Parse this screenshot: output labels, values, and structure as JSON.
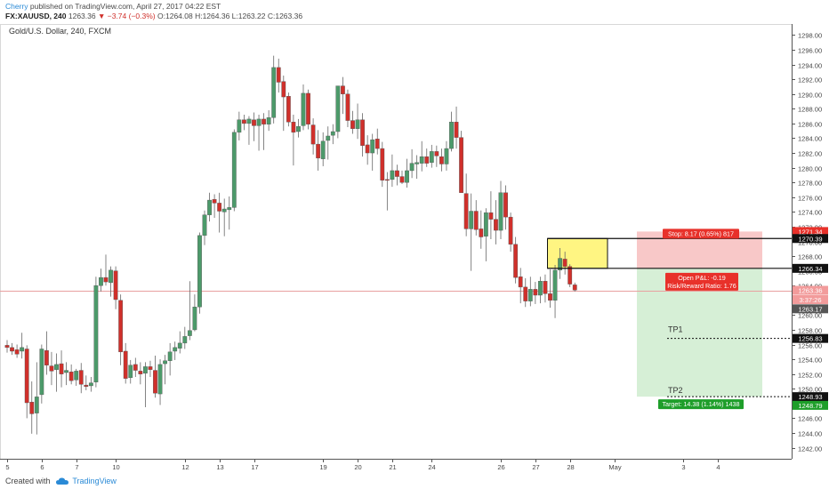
{
  "header": {
    "author": "Cherry",
    "published": " published on TradingView.com, April 27, 2017 04:22 EST",
    "symbol": "FX:XAUUSD, 240",
    "last": "1263.36",
    "change": "▼ −3.74 (−0.3%)",
    "ohlc": "O:1264.08 H:1264.36 L:1263.22 C:1263.36"
  },
  "footer": {
    "created_with": "Created with",
    "brand": "TradingView"
  },
  "colors": {
    "up": "#4c9a6a",
    "down": "#d0302b",
    "stop_zone": "#f8c8c8",
    "target_zone": "#d6efd6",
    "entry_box": "#fff36c",
    "last_price_line": "#e8a0a0"
  },
  "chart_data": {
    "type": "candlestick",
    "title": "Gold/U.S. Dollar, 240, FXCM",
    "ylim": [
      1240.5,
      1299.5
    ],
    "yticks": [
      1242,
      1244,
      1246,
      1248,
      1250,
      1252,
      1254,
      1256,
      1258,
      1260,
      1262,
      1264,
      1266,
      1268,
      1270,
      1272,
      1274,
      1276,
      1278,
      1280,
      1282,
      1284,
      1286,
      1288,
      1290,
      1292,
      1294,
      1296,
      1298
    ],
    "xticks": [
      "5",
      "6",
      "7",
      "10",
      "12",
      "13",
      "17",
      "19",
      "20",
      "21",
      "24",
      "26",
      "27",
      "28",
      "May",
      "3",
      "4"
    ],
    "candles": [
      {
        "o": 1255.9,
        "h": 1256.6,
        "l": 1254.9,
        "c": 1255.6
      },
      {
        "o": 1255.6,
        "h": 1256.2,
        "l": 1254.6,
        "c": 1255.1
      },
      {
        "o": 1255.3,
        "h": 1256.0,
        "l": 1254.2,
        "c": 1254.7
      },
      {
        "o": 1255.1,
        "h": 1257.6,
        "l": 1254.1,
        "c": 1255.6
      },
      {
        "o": 1255.4,
        "h": 1255.9,
        "l": 1246.0,
        "c": 1248.1
      },
      {
        "o": 1248.2,
        "h": 1251.0,
        "l": 1243.9,
        "c": 1246.6
      },
      {
        "o": 1246.7,
        "h": 1253.6,
        "l": 1243.8,
        "c": 1248.9
      },
      {
        "o": 1249.2,
        "h": 1256.0,
        "l": 1248.0,
        "c": 1255.4
      },
      {
        "o": 1255.2,
        "h": 1257.8,
        "l": 1251.9,
        "c": 1253.2
      },
      {
        "o": 1253.1,
        "h": 1255.0,
        "l": 1250.5,
        "c": 1252.4
      },
      {
        "o": 1252.6,
        "h": 1254.8,
        "l": 1249.6,
        "c": 1253.3
      },
      {
        "o": 1253.4,
        "h": 1255.2,
        "l": 1250.2,
        "c": 1252.0
      },
      {
        "o": 1252.2,
        "h": 1253.6,
        "l": 1250.5,
        "c": 1252.5
      },
      {
        "o": 1252.3,
        "h": 1253.3,
        "l": 1250.6,
        "c": 1251.1
      },
      {
        "o": 1251.2,
        "h": 1252.7,
        "l": 1250.4,
        "c": 1252.4
      },
      {
        "o": 1252.5,
        "h": 1253.5,
        "l": 1249.4,
        "c": 1250.6
      },
      {
        "o": 1250.5,
        "h": 1251.8,
        "l": 1249.8,
        "c": 1250.3
      },
      {
        "o": 1250.4,
        "h": 1251.6,
        "l": 1249.6,
        "c": 1250.8
      },
      {
        "o": 1250.9,
        "h": 1265.2,
        "l": 1250.2,
        "c": 1264.0
      },
      {
        "o": 1264.0,
        "h": 1266.3,
        "l": 1263.2,
        "c": 1265.1
      },
      {
        "o": 1265.1,
        "h": 1268.2,
        "l": 1264.0,
        "c": 1264.5
      },
      {
        "o": 1264.4,
        "h": 1266.6,
        "l": 1262.5,
        "c": 1266.1
      },
      {
        "o": 1266.0,
        "h": 1266.6,
        "l": 1260.8,
        "c": 1262.1
      },
      {
        "o": 1262.0,
        "h": 1262.8,
        "l": 1253.2,
        "c": 1255.0
      },
      {
        "o": 1255.1,
        "h": 1256.2,
        "l": 1250.7,
        "c": 1251.4
      },
      {
        "o": 1251.5,
        "h": 1253.9,
        "l": 1250.7,
        "c": 1253.2
      },
      {
        "o": 1253.3,
        "h": 1254.2,
        "l": 1251.6,
        "c": 1252.5
      },
      {
        "o": 1252.4,
        "h": 1253.6,
        "l": 1250.6,
        "c": 1252.0
      },
      {
        "o": 1252.1,
        "h": 1253.6,
        "l": 1247.5,
        "c": 1253.0
      },
      {
        "o": 1253.0,
        "h": 1253.8,
        "l": 1251.6,
        "c": 1252.6
      },
      {
        "o": 1252.5,
        "h": 1254.5,
        "l": 1248.8,
        "c": 1249.4
      },
      {
        "o": 1249.3,
        "h": 1254.0,
        "l": 1247.8,
        "c": 1253.3
      },
      {
        "o": 1253.4,
        "h": 1254.6,
        "l": 1250.6,
        "c": 1253.8
      },
      {
        "o": 1253.8,
        "h": 1256.2,
        "l": 1251.8,
        "c": 1255.0
      },
      {
        "o": 1255.1,
        "h": 1256.4,
        "l": 1253.9,
        "c": 1255.6
      },
      {
        "o": 1255.5,
        "h": 1257.8,
        "l": 1254.8,
        "c": 1256.2
      },
      {
        "o": 1256.2,
        "h": 1258.4,
        "l": 1255.4,
        "c": 1257.1
      },
      {
        "o": 1257.2,
        "h": 1264.6,
        "l": 1256.6,
        "c": 1257.9
      },
      {
        "o": 1258.0,
        "h": 1262.8,
        "l": 1257.8,
        "c": 1261.1
      },
      {
        "o": 1261.1,
        "h": 1271.2,
        "l": 1260.2,
        "c": 1270.8
      },
      {
        "o": 1270.8,
        "h": 1274.2,
        "l": 1269.5,
        "c": 1273.6
      },
      {
        "o": 1273.6,
        "h": 1276.6,
        "l": 1272.7,
        "c": 1275.6
      },
      {
        "o": 1275.7,
        "h": 1276.4,
        "l": 1273.2,
        "c": 1275.2
      },
      {
        "o": 1275.2,
        "h": 1276.6,
        "l": 1271.2,
        "c": 1274.1
      },
      {
        "o": 1274.0,
        "h": 1275.8,
        "l": 1270.7,
        "c": 1274.4
      },
      {
        "o": 1274.3,
        "h": 1276.1,
        "l": 1271.6,
        "c": 1274.6
      },
      {
        "o": 1274.6,
        "h": 1285.2,
        "l": 1274.1,
        "c": 1284.8
      },
      {
        "o": 1284.8,
        "h": 1287.6,
        "l": 1283.7,
        "c": 1286.5
      },
      {
        "o": 1286.5,
        "h": 1287.2,
        "l": 1285.1,
        "c": 1286.0
      },
      {
        "o": 1286.0,
        "h": 1287.0,
        "l": 1283.1,
        "c": 1286.6
      },
      {
        "o": 1286.5,
        "h": 1287.5,
        "l": 1283.6,
        "c": 1285.7
      },
      {
        "o": 1285.7,
        "h": 1287.2,
        "l": 1282.3,
        "c": 1286.6
      },
      {
        "o": 1286.6,
        "h": 1287.4,
        "l": 1282.4,
        "c": 1285.9
      },
      {
        "o": 1285.9,
        "h": 1287.8,
        "l": 1285.0,
        "c": 1286.8
      },
      {
        "o": 1286.8,
        "h": 1295.2,
        "l": 1286.0,
        "c": 1293.6
      },
      {
        "o": 1293.6,
        "h": 1294.8,
        "l": 1290.2,
        "c": 1291.6
      },
      {
        "o": 1291.7,
        "h": 1292.5,
        "l": 1285.0,
        "c": 1289.6
      },
      {
        "o": 1289.7,
        "h": 1290.2,
        "l": 1285.6,
        "c": 1286.2
      },
      {
        "o": 1286.2,
        "h": 1287.2,
        "l": 1280.3,
        "c": 1284.8
      },
      {
        "o": 1284.9,
        "h": 1286.6,
        "l": 1284.1,
        "c": 1285.6
      },
      {
        "o": 1285.7,
        "h": 1291.3,
        "l": 1285.1,
        "c": 1290.1
      },
      {
        "o": 1290.1,
        "h": 1290.6,
        "l": 1285.2,
        "c": 1285.9
      },
      {
        "o": 1285.8,
        "h": 1286.7,
        "l": 1281.8,
        "c": 1283.2
      },
      {
        "o": 1283.2,
        "h": 1285.1,
        "l": 1279.6,
        "c": 1281.3
      },
      {
        "o": 1281.2,
        "h": 1284.8,
        "l": 1280.2,
        "c": 1283.6
      },
      {
        "o": 1283.7,
        "h": 1285.6,
        "l": 1281.1,
        "c": 1284.3
      },
      {
        "o": 1284.4,
        "h": 1285.9,
        "l": 1283.2,
        "c": 1284.9
      },
      {
        "o": 1284.9,
        "h": 1290.7,
        "l": 1284.0,
        "c": 1291.1
      },
      {
        "o": 1291.1,
        "h": 1292.3,
        "l": 1287.3,
        "c": 1290.0
      },
      {
        "o": 1290.0,
        "h": 1290.6,
        "l": 1285.5,
        "c": 1286.4
      },
      {
        "o": 1286.4,
        "h": 1287.7,
        "l": 1284.6,
        "c": 1285.3
      },
      {
        "o": 1285.3,
        "h": 1288.7,
        "l": 1283.9,
        "c": 1286.5
      },
      {
        "o": 1286.5,
        "h": 1287.4,
        "l": 1281.5,
        "c": 1283.0
      },
      {
        "o": 1283.1,
        "h": 1284.4,
        "l": 1280.4,
        "c": 1282.0
      },
      {
        "o": 1282.0,
        "h": 1284.6,
        "l": 1279.6,
        "c": 1283.8
      },
      {
        "o": 1283.9,
        "h": 1285.3,
        "l": 1281.8,
        "c": 1282.6
      },
      {
        "o": 1282.6,
        "h": 1283.5,
        "l": 1277.4,
        "c": 1278.3
      },
      {
        "o": 1278.4,
        "h": 1279.4,
        "l": 1274.2,
        "c": 1278.3
      },
      {
        "o": 1278.4,
        "h": 1281.8,
        "l": 1277.4,
        "c": 1279.6
      },
      {
        "o": 1279.6,
        "h": 1280.4,
        "l": 1277.6,
        "c": 1278.8
      },
      {
        "o": 1278.8,
        "h": 1279.6,
        "l": 1277.8,
        "c": 1278.0
      },
      {
        "o": 1278.0,
        "h": 1281.2,
        "l": 1277.3,
        "c": 1279.6
      },
      {
        "o": 1279.6,
        "h": 1282.5,
        "l": 1278.6,
        "c": 1280.6
      },
      {
        "o": 1280.5,
        "h": 1281.7,
        "l": 1278.5,
        "c": 1280.7
      },
      {
        "o": 1280.6,
        "h": 1283.6,
        "l": 1279.5,
        "c": 1281.5
      },
      {
        "o": 1281.5,
        "h": 1282.6,
        "l": 1280.1,
        "c": 1280.6
      },
      {
        "o": 1280.7,
        "h": 1283.1,
        "l": 1280.0,
        "c": 1282.2
      },
      {
        "o": 1282.2,
        "h": 1283.0,
        "l": 1280.1,
        "c": 1281.6
      },
      {
        "o": 1281.5,
        "h": 1282.6,
        "l": 1279.5,
        "c": 1280.5
      },
      {
        "o": 1280.5,
        "h": 1283.6,
        "l": 1279.6,
        "c": 1282.6
      },
      {
        "o": 1282.6,
        "h": 1287.6,
        "l": 1282.2,
        "c": 1286.2
      },
      {
        "o": 1286.2,
        "h": 1288.3,
        "l": 1282.6,
        "c": 1284.1
      },
      {
        "o": 1284.1,
        "h": 1285.0,
        "l": 1277.1,
        "c": 1276.6
      },
      {
        "o": 1276.5,
        "h": 1279.2,
        "l": 1270.7,
        "c": 1271.7
      },
      {
        "o": 1271.7,
        "h": 1276.5,
        "l": 1266.0,
        "c": 1274.1
      },
      {
        "o": 1274.1,
        "h": 1275.6,
        "l": 1270.8,
        "c": 1271.6
      },
      {
        "o": 1271.7,
        "h": 1274.2,
        "l": 1269.0,
        "c": 1270.6
      },
      {
        "o": 1270.7,
        "h": 1274.5,
        "l": 1267.3,
        "c": 1273.9
      },
      {
        "o": 1273.9,
        "h": 1276.8,
        "l": 1270.3,
        "c": 1273.0
      },
      {
        "o": 1273.0,
        "h": 1275.6,
        "l": 1269.6,
        "c": 1271.5
      },
      {
        "o": 1271.5,
        "h": 1278.2,
        "l": 1270.3,
        "c": 1276.6
      },
      {
        "o": 1276.6,
        "h": 1277.6,
        "l": 1271.6,
        "c": 1273.3
      },
      {
        "o": 1273.3,
        "h": 1273.9,
        "l": 1268.6,
        "c": 1269.6
      },
      {
        "o": 1269.6,
        "h": 1270.6,
        "l": 1264.3,
        "c": 1265.1
      },
      {
        "o": 1265.2,
        "h": 1266.4,
        "l": 1261.6,
        "c": 1263.8
      },
      {
        "o": 1263.8,
        "h": 1265.0,
        "l": 1261.1,
        "c": 1261.9
      },
      {
        "o": 1261.9,
        "h": 1265.2,
        "l": 1261.2,
        "c": 1263.5
      },
      {
        "o": 1263.5,
        "h": 1264.5,
        "l": 1261.5,
        "c": 1262.7
      },
      {
        "o": 1262.7,
        "h": 1265.2,
        "l": 1261.6,
        "c": 1264.6
      },
      {
        "o": 1264.6,
        "h": 1265.5,
        "l": 1261.7,
        "c": 1262.9
      },
      {
        "o": 1262.9,
        "h": 1266.2,
        "l": 1261.0,
        "c": 1262.0
      },
      {
        "o": 1262.0,
        "h": 1266.8,
        "l": 1259.6,
        "c": 1266.1
      },
      {
        "o": 1266.1,
        "h": 1269.1,
        "l": 1264.9,
        "c": 1267.7
      },
      {
        "o": 1267.6,
        "h": 1268.6,
        "l": 1265.5,
        "c": 1266.6
      },
      {
        "o": 1266.6,
        "h": 1266.9,
        "l": 1263.8,
        "c": 1264.2
      },
      {
        "o": 1264.1,
        "h": 1264.4,
        "l": 1263.2,
        "c": 1263.4
      }
    ],
    "position": {
      "entry": 1266.34,
      "stop": 1271.34,
      "target": 1248.93,
      "stop_label": "Stop: 8.17 (0.65%) 817",
      "target_label": "Target: 14.38 (1.14%) 1438",
      "pnl_label": "Open P&L: -0.19",
      "rr_label": "Risk/Reward Ratio: 1.76",
      "tp1": 1256.83,
      "tp2": 1248.93,
      "tp1_label": "TP1",
      "tp2_label": "TP2",
      "entry_box_top": 1270.39
    },
    "price_tags": [
      {
        "text": "1271.34",
        "price": 1271.34,
        "bg": "#e8312a",
        "fg": "#ffffff"
      },
      {
        "text": "1270.39",
        "price": 1270.39,
        "bg": "#111111",
        "fg": "#ffffff"
      },
      {
        "text": "1266.34",
        "price": 1266.34,
        "bg": "#111111",
        "fg": "#ffffff"
      },
      {
        "text": "1263.36",
        "price": 1263.36,
        "bg": "#f29b9b",
        "fg": "#ffffff"
      },
      {
        "text": "3:37:26",
        "price": 1262.1,
        "bg": "#f29b9b",
        "fg": "#ffffff"
      },
      {
        "text": "1263.17",
        "price": 1260.85,
        "bg": "#555555",
        "fg": "#ffffff"
      },
      {
        "text": "1256.83",
        "price": 1256.83,
        "bg": "#111111",
        "fg": "#ffffff"
      },
      {
        "text": "1248.93",
        "price": 1248.93,
        "bg": "#111111",
        "fg": "#ffffff"
      },
      {
        "text": "1248.79",
        "price": 1247.75,
        "bg": "#1e9e2a",
        "fg": "#ffffff"
      }
    ],
    "last_price": 1263.36
  }
}
